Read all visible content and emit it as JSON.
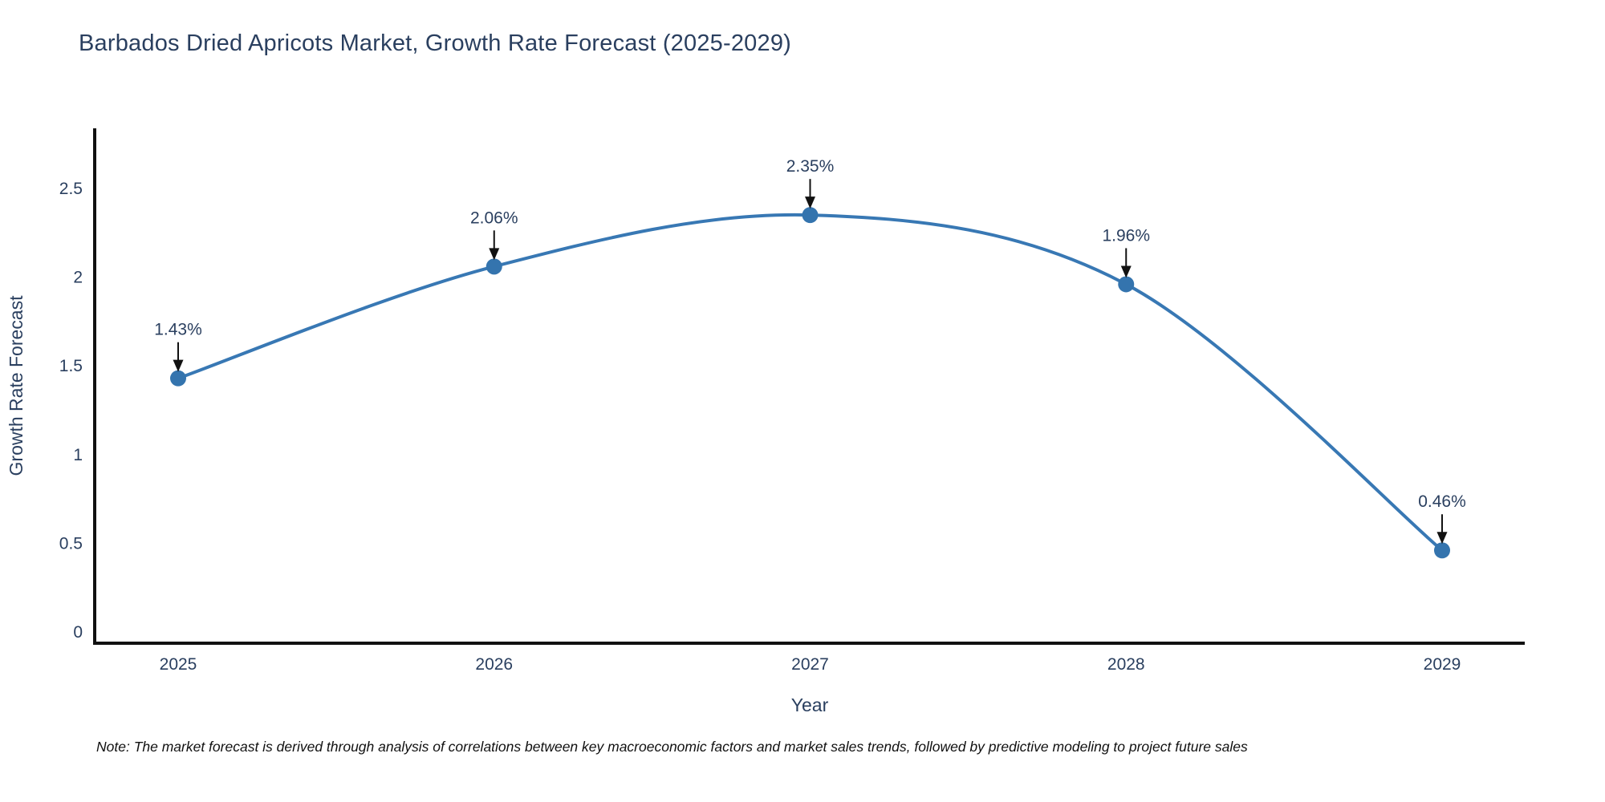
{
  "chart_data": {
    "type": "line",
    "title": "Barbados Dried Apricots Market, Growth Rate Forecast (2025-2029)",
    "x": [
      2025,
      2026,
      2027,
      2028,
      2029
    ],
    "values": [
      1.43,
      2.06,
      2.35,
      1.96,
      0.46
    ],
    "point_labels": [
      "1.43%",
      "2.06%",
      "2.35%",
      "1.96%",
      "0.46%"
    ],
    "xlabel": "Year",
    "ylabel": "Growth Rate Forecast",
    "xtick_labels": [
      "2025",
      "2026",
      "2027",
      "2028",
      "2029"
    ],
    "yticks": [
      0,
      0.5,
      1,
      1.5,
      2,
      2.5
    ],
    "ytick_labels": [
      "0",
      "0.5",
      "1",
      "1.5",
      "2",
      "2.5"
    ],
    "ylim": [
      -0.06,
      2.9
    ],
    "line_shape": "spline",
    "grid": false,
    "legend_position": "none",
    "colors": {
      "line": "#3878b4",
      "marker": "#3474ae",
      "axis_line": "#111111",
      "tick_text": "#2a3f5f",
      "annotation_text": "#2a3f5f",
      "annotation_arrow": "#111111",
      "title_text": "#2a3f5f",
      "background": "#ffffff"
    }
  },
  "note": {
    "text": "Note: The market forecast is derived through analysis of correlations between key macroeconomic factors and market sales trends, followed by predictive modeling to project future sales"
  }
}
